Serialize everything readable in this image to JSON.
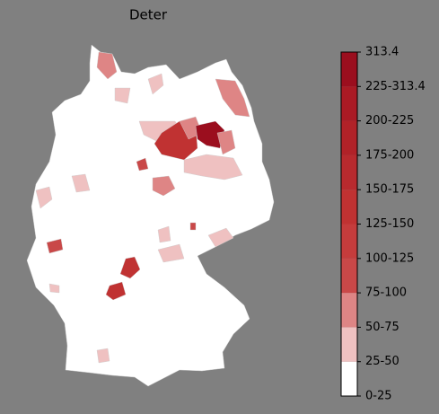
{
  "chart_data": {
    "type": "choropleth",
    "title": "Deter",
    "colorbar": {
      "labels": [
        "0-25",
        "25-50",
        "50-75",
        "75-100",
        "100-125",
        "125-150",
        "150-175",
        "175-200",
        "200-225",
        "225-313.4",
        "313.4"
      ],
      "colors": [
        "#ffffff",
        "#efc1c1",
        "#de8585",
        "#c94848",
        "#c53c3c",
        "#c03232",
        "#b82a2e",
        "#b12228",
        "#aa1a24",
        "#9b0e1e"
      ]
    }
  }
}
